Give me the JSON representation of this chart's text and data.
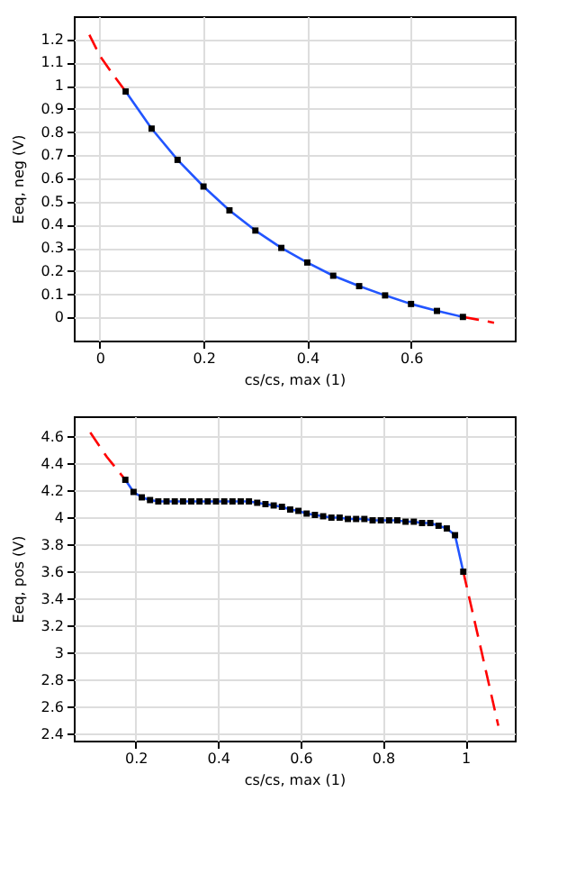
{
  "chart_data": [
    {
      "type": "line",
      "xlabel": "cs/cs, max (1)",
      "ylabel": "Eeq, neg (V)",
      "xlim": [
        -0.05,
        0.8
      ],
      "ylim": [
        -0.1,
        1.3
      ],
      "xticks": [
        0,
        0.2,
        0.4,
        0.6
      ],
      "yticks": [
        0,
        0.1,
        0.2,
        0.3,
        0.4,
        0.5,
        0.6,
        0.7,
        0.8,
        0.9,
        1,
        1.1,
        1.2
      ],
      "grid": true,
      "series": [
        {
          "color": "#ff0000",
          "line_style": "dashed",
          "marker": "none",
          "x": [
            -0.02,
            0.0,
            0.025,
            0.05
          ],
          "values": [
            1.22,
            1.13,
            1.05,
            0.975
          ]
        },
        {
          "color": "#ff0000",
          "line_style": "dashed",
          "marker": "none",
          "x": [
            0.7,
            0.73,
            0.76
          ],
          "values": [
            0.002,
            -0.01,
            -0.023
          ]
        },
        {
          "color": "#2255ff",
          "line_style": "solid",
          "marker": "square",
          "x": [
            0.05,
            0.1,
            0.15,
            0.2,
            0.25,
            0.3,
            0.35,
            0.4,
            0.45,
            0.5,
            0.55,
            0.6,
            0.65,
            0.7
          ],
          "values": [
            0.975,
            0.815,
            0.68,
            0.565,
            0.462,
            0.375,
            0.3,
            0.237,
            0.18,
            0.135,
            0.095,
            0.058,
            0.028,
            0.002
          ]
        }
      ]
    },
    {
      "type": "line",
      "xlabel": "cs/cs, max (1)",
      "ylabel": "Eeq, pos (V)",
      "xlim": [
        0.05,
        1.12
      ],
      "ylim": [
        2.35,
        4.75
      ],
      "xticks": [
        0.2,
        0.4,
        0.6,
        0.8,
        1
      ],
      "yticks": [
        2.4,
        2.6,
        2.8,
        3,
        3.2,
        3.4,
        3.6,
        3.8,
        4,
        4.2,
        4.4,
        4.6
      ],
      "grid": true,
      "series": [
        {
          "color": "#ff0000",
          "line_style": "dashed",
          "marker": "none",
          "x": [
            0.09,
            0.13,
            0.175
          ],
          "values": [
            4.63,
            4.45,
            4.28
          ]
        },
        {
          "color": "#ff0000",
          "line_style": "dashed",
          "marker": "none",
          "x": [
            0.995,
            1.04,
            1.08
          ],
          "values": [
            3.6,
            3.0,
            2.46
          ]
        },
        {
          "color": "#2255ff",
          "line_style": "solid",
          "marker": "square",
          "x": [
            0.175,
            0.195,
            0.215,
            0.235,
            0.255,
            0.275,
            0.295,
            0.315,
            0.335,
            0.355,
            0.375,
            0.395,
            0.415,
            0.435,
            0.455,
            0.475,
            0.495,
            0.515,
            0.535,
            0.555,
            0.575,
            0.595,
            0.615,
            0.635,
            0.655,
            0.675,
            0.695,
            0.715,
            0.735,
            0.755,
            0.775,
            0.795,
            0.815,
            0.835,
            0.855,
            0.875,
            0.895,
            0.915,
            0.935,
            0.955,
            0.975,
            0.995
          ],
          "values": [
            4.28,
            4.19,
            4.15,
            4.13,
            4.12,
            4.12,
            4.12,
            4.12,
            4.12,
            4.12,
            4.12,
            4.12,
            4.12,
            4.12,
            4.12,
            4.12,
            4.11,
            4.1,
            4.09,
            4.08,
            4.06,
            4.05,
            4.03,
            4.02,
            4.01,
            4.0,
            4.0,
            3.99,
            3.99,
            3.99,
            3.98,
            3.98,
            3.98,
            3.98,
            3.97,
            3.97,
            3.96,
            3.96,
            3.94,
            3.92,
            3.87,
            3.6
          ]
        }
      ]
    }
  ]
}
